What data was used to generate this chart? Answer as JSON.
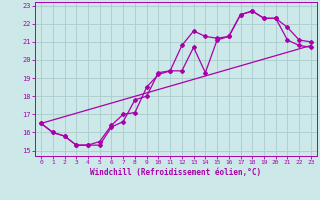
{
  "xlabel": "Windchill (Refroidissement éolien,°C)",
  "background_color": "#cce8e8",
  "grid_color": "#aacccc",
  "line_color": "#aa00aa",
  "xlim_min": -0.5,
  "xlim_max": 23.5,
  "ylim_min": 14.7,
  "ylim_max": 23.2,
  "xticks": [
    0,
    1,
    2,
    3,
    4,
    5,
    6,
    7,
    8,
    9,
    10,
    11,
    12,
    13,
    14,
    15,
    16,
    17,
    18,
    19,
    20,
    21,
    22,
    23
  ],
  "yticks": [
    15,
    16,
    17,
    18,
    19,
    20,
    21,
    22,
    23
  ],
  "line1_x": [
    0,
    1,
    2,
    3,
    4,
    5,
    6,
    7,
    8,
    9,
    10,
    11,
    12,
    13,
    14,
    15,
    16,
    17,
    18,
    19,
    20,
    21,
    22,
    23
  ],
  "line1_y": [
    16.5,
    16.0,
    15.8,
    15.3,
    15.3,
    15.3,
    16.3,
    16.6,
    17.8,
    18.0,
    19.3,
    19.4,
    20.8,
    21.6,
    21.3,
    21.2,
    21.3,
    22.5,
    22.7,
    22.3,
    22.3,
    21.8,
    21.1,
    21.0
  ],
  "line2_x": [
    0,
    1,
    2,
    3,
    4,
    5,
    6,
    7,
    8,
    9,
    10,
    11,
    12,
    13,
    14,
    15,
    16,
    17,
    18,
    19,
    20,
    21,
    22,
    23
  ],
  "line2_y": [
    16.5,
    16.0,
    15.8,
    15.3,
    15.3,
    15.5,
    16.4,
    17.0,
    17.1,
    18.5,
    19.2,
    19.4,
    19.4,
    20.7,
    19.3,
    21.1,
    21.3,
    22.5,
    22.7,
    22.3,
    22.3,
    21.1,
    20.8,
    20.7
  ],
  "line3_x": [
    0,
    23
  ],
  "line3_y": [
    16.5,
    20.8
  ]
}
